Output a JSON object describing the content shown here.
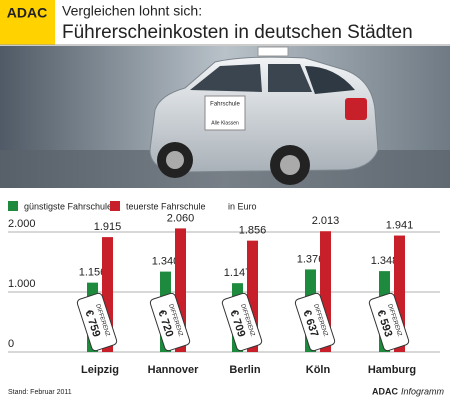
{
  "header": {
    "logo": "ADAC",
    "line1": "Vergleichen lohnt sich:",
    "line2": "Führerscheinkosten in deutschen Städten"
  },
  "photo": {
    "sign1": "Fahrschule",
    "sign2": "Alle Klassen"
  },
  "chart_data": {
    "type": "bar",
    "categories": [
      "Leipzig",
      "Hannover",
      "Berlin",
      "Köln",
      "Hamburg"
    ],
    "series": [
      {
        "name": "günstigste Fahrschule",
        "color": "#1e8a3e",
        "values": [
          1156,
          1340,
          1147,
          1376,
          1348
        ],
        "value_labels": [
          "1.156",
          "1.340",
          "1.147",
          "1.376",
          "1.348"
        ]
      },
      {
        "name": "teuerste Fahrschule",
        "color": "#c8202a",
        "values": [
          1915,
          2060,
          1856,
          2013,
          1941
        ],
        "value_labels": [
          "1.915",
          "2.060",
          "1.856",
          "2.013",
          "1.941"
        ]
      }
    ],
    "unit_note": "in Euro",
    "differences": {
      "name": "DIFFERENZ",
      "values": [
        759,
        720,
        709,
        637,
        593
      ],
      "value_labels": [
        "€ 759",
        "€ 720",
        "€ 709",
        "€ 637",
        "€ 593"
      ]
    },
    "ylim": [
      0,
      2100
    ],
    "yticks": [
      0,
      {
        "value": 1000,
        "label": "1.000"
      },
      {
        "value": 2000,
        "label": "2.000"
      }
    ],
    "grid": true
  },
  "footer": {
    "stand": "Stand:  Februar 2011",
    "brand": "ADAC",
    "brand_suffix": "Infogramm"
  }
}
